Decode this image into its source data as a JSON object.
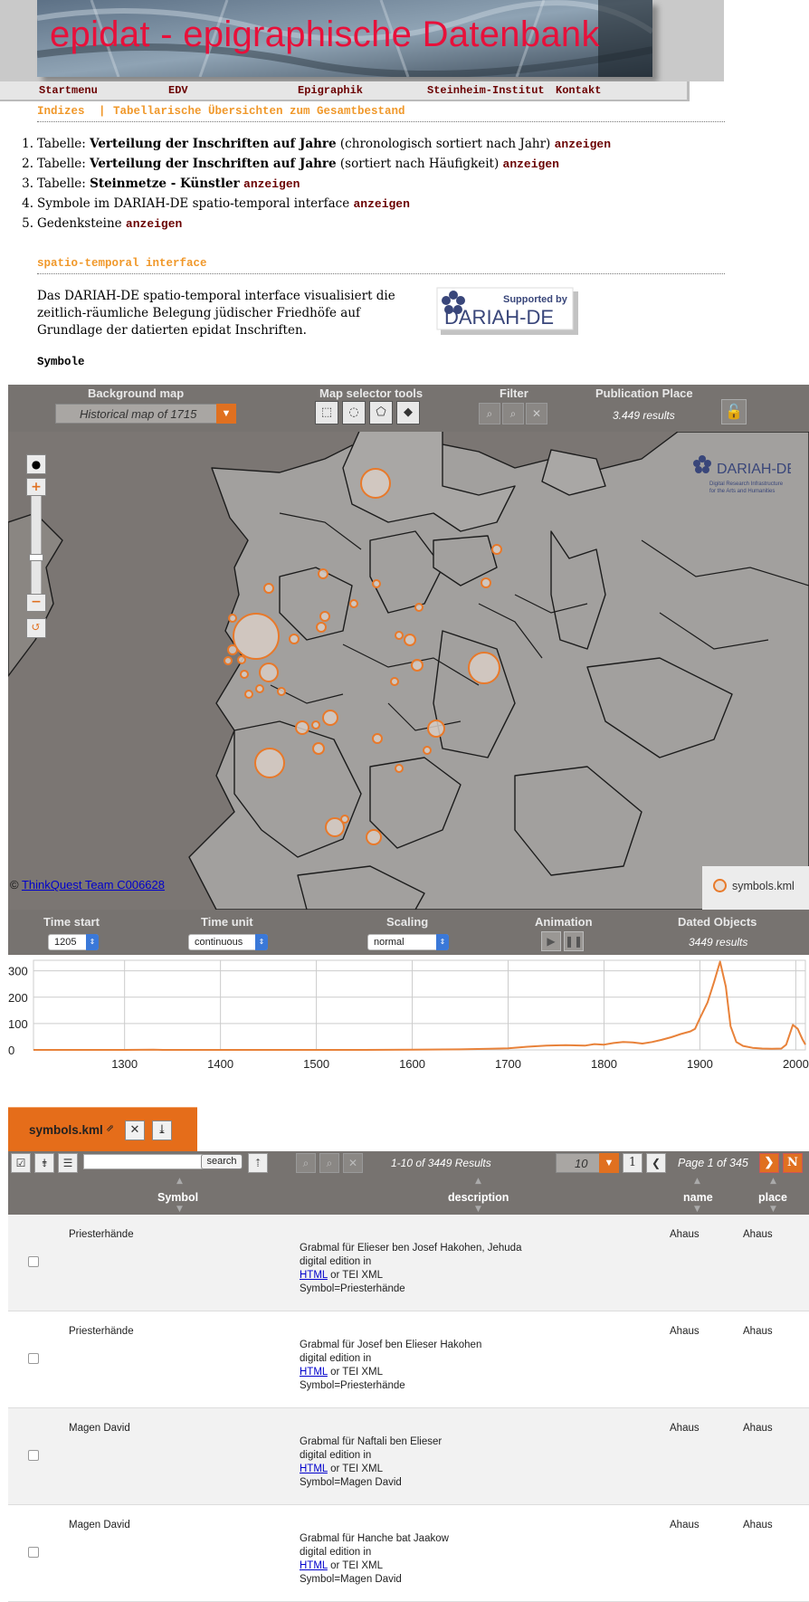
{
  "header": {
    "title": "epidat - epigraphische Datenbank"
  },
  "topnav": [
    "Startmenu",
    "EDV",
    "Epigraphik",
    "Steinheim-Institut",
    "Kontakt"
  ],
  "subnav": {
    "left": "Indizes",
    "sep": "|",
    "right": "Tabellarische Übersichten zum Gesamtbestand"
  },
  "links": [
    {
      "num": "1.",
      "pre": "Tabelle: ",
      "bold": "Verteilung der Inschriften auf Jahre",
      "post": " (chronologisch sortiert nach Jahr) ",
      "action": "anzeigen"
    },
    {
      "num": "2.",
      "pre": "Tabelle: ",
      "bold": "Verteilung der Inschriften auf Jahre",
      "post": " (sortiert nach Häufigkeit) ",
      "action": "anzeigen"
    },
    {
      "num": "3.",
      "pre": "Tabelle: ",
      "bold": "Steinmetze - Künstler",
      "post": " ",
      "action": "anzeigen"
    },
    {
      "num": "4.",
      "pre": "Symbole im DARIAH-DE spatio-temporal interface ",
      "bold": "",
      "post": "",
      "action": "anzeigen"
    },
    {
      "num": "5.",
      "pre": "Gedenksteine ",
      "bold": "",
      "post": "",
      "action": "anzeigen"
    }
  ],
  "section2": {
    "title": "spatio-temporal interface"
  },
  "description": "Das DARIAH-DE spatio-temporal interface visualisiert die zeitlich-räumliche Belegung jüdischer Friedhöfe auf Grundlage der datierten epidat Inschriften.",
  "badge": {
    "supported": "Supported by",
    "name": "DARIAH-DE"
  },
  "symbole_label": "Symbole",
  "panel": {
    "bg_title": "Background map",
    "bg_value": "Historical map of 1715",
    "tools_title": "Map selector tools",
    "filter_title": "Filter",
    "pub_title": "Publication Place",
    "pub_results": "3.449 results"
  },
  "map": {
    "copyright_prefix": "© ",
    "copyright_link": "ThinkQuest Team C006628",
    "legend": "symbols.kml",
    "logo_name": "DARIAH-DE",
    "logo_sub1": "Digital Research Infrastructure",
    "logo_sub2": "for the Arts and Humanities"
  },
  "time_panel": {
    "start_title": "Time start",
    "start_value": "1205",
    "unit_title": "Time unit",
    "unit_value": "continuous",
    "scaling_title": "Scaling",
    "scaling_value": "normal",
    "anim_title": "Animation",
    "dated_title": "Dated Objects",
    "dated_results": "3449 results"
  },
  "chart_data": {
    "type": "line",
    "xlim": [
      1205,
      2010
    ],
    "ylim": [
      0,
      340
    ],
    "xticks": [
      1300,
      1400,
      1500,
      1600,
      1700,
      1800,
      1900,
      2000
    ],
    "yticks": [
      0,
      100,
      200,
      300
    ],
    "xticklabels": [
      "1300",
      "1400",
      "1500",
      "1600",
      "1700",
      "1800",
      "1900",
      "2000"
    ],
    "yticklabels": [
      "0",
      "100",
      "200",
      "300"
    ],
    "series": [
      {
        "color": "#e8823a",
        "points": [
          [
            1205,
            0
          ],
          [
            1260,
            0
          ],
          [
            1300,
            0
          ],
          [
            1330,
            1
          ],
          [
            1340,
            0
          ],
          [
            1400,
            0
          ],
          [
            1450,
            0
          ],
          [
            1500,
            0
          ],
          [
            1550,
            0
          ],
          [
            1600,
            1
          ],
          [
            1650,
            2
          ],
          [
            1680,
            4
          ],
          [
            1700,
            6
          ],
          [
            1720,
            12
          ],
          [
            1740,
            16
          ],
          [
            1760,
            18
          ],
          [
            1780,
            16
          ],
          [
            1790,
            22
          ],
          [
            1800,
            20
          ],
          [
            1810,
            26
          ],
          [
            1820,
            30
          ],
          [
            1830,
            28
          ],
          [
            1840,
            24
          ],
          [
            1850,
            30
          ],
          [
            1860,
            38
          ],
          [
            1870,
            48
          ],
          [
            1880,
            60
          ],
          [
            1890,
            70
          ],
          [
            1895,
            80
          ],
          [
            1900,
            120
          ],
          [
            1908,
            180
          ],
          [
            1915,
            260
          ],
          [
            1921,
            335
          ],
          [
            1927,
            240
          ],
          [
            1932,
            90
          ],
          [
            1938,
            30
          ],
          [
            1945,
            15
          ],
          [
            1955,
            8
          ],
          [
            1965,
            5
          ],
          [
            1975,
            4
          ],
          [
            1985,
            5
          ],
          [
            1990,
            20
          ],
          [
            1997,
            95
          ],
          [
            2002,
            80
          ],
          [
            2007,
            40
          ],
          [
            2010,
            20
          ]
        ]
      }
    ]
  },
  "table_tab": {
    "label": "symbols.kml"
  },
  "table_toolbar": {
    "search_label": "search",
    "results": "1-10 of 3449 Results",
    "per_page": "10",
    "page": "1",
    "page_info": "Page 1 of 345"
  },
  "table": {
    "columns": [
      "Symbol",
      "description",
      "name",
      "place"
    ],
    "rows": [
      {
        "symbol": "Priesterhände",
        "desc_title": "Grabmal für Elieser ben Josef Hakohen, Jehuda",
        "desc_line2": "digital edition in",
        "desc_link": "HTML",
        "desc_tei": " or TEI XML",
        "desc_symbol": "Symbol=Priesterhände",
        "name": "Ahaus",
        "place": "Ahaus"
      },
      {
        "symbol": "Priesterhände",
        "desc_title": "Grabmal für Josef ben Elieser Hakohen",
        "desc_line2": "digital edition in",
        "desc_link": "HTML",
        "desc_tei": " or TEI XML",
        "desc_symbol": "Symbol=Priesterhände",
        "name": "Ahaus",
        "place": "Ahaus"
      },
      {
        "symbol": "Magen David",
        "desc_title": "Grabmal für Naftali ben Elieser",
        "desc_line2": "digital edition in",
        "desc_link": "HTML",
        "desc_tei": " or TEI XML",
        "desc_symbol": "Symbol=Magen David",
        "name": "Ahaus",
        "place": "Ahaus"
      },
      {
        "symbol": "Magen David",
        "desc_title": "Grabmal für Hanche bat Jaakow",
        "desc_line2": "digital edition in",
        "desc_link": "HTML",
        "desc_tei": " or TEI XML",
        "desc_symbol": "Symbol=Magen David",
        "name": "Ahaus",
        "place": "Ahaus"
      }
    ]
  }
}
